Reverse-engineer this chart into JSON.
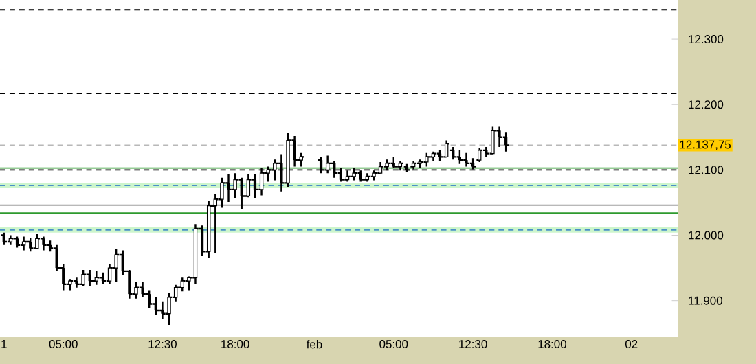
{
  "chart_data": {
    "type": "candlestick",
    "categories": [
      "1",
      null,
      null,
      null,
      null,
      null,
      null,
      null,
      null,
      "05:00",
      null,
      null,
      null,
      null,
      null,
      null,
      null,
      null,
      null,
      null,
      null,
      null,
      null,
      null,
      "12:30",
      null,
      null,
      null,
      null,
      null,
      null,
      null,
      null,
      null,
      null,
      "18:00",
      null,
      null,
      null,
      null,
      null,
      null,
      null,
      null,
      null,
      null,
      null,
      "feb",
      null,
      null,
      null,
      null,
      null,
      null,
      null,
      null,
      null,
      null,
      null,
      "05:00",
      null,
      null,
      null,
      null,
      null,
      null,
      null,
      null,
      null,
      null,
      null,
      "12:30",
      null,
      null,
      null,
      null,
      null,
      null,
      null,
      null,
      null,
      null,
      null,
      "18:00",
      null,
      null,
      null,
      null,
      null,
      null,
      null,
      null,
      null,
      null,
      null,
      "02",
      null,
      null,
      null,
      null,
      null,
      null,
      null
    ],
    "ohlc": [
      [
        12000,
        12004,
        11985,
        11990
      ],
      [
        11990,
        12000,
        11985,
        11995
      ],
      [
        11995,
        11998,
        11981,
        11985
      ],
      [
        11985,
        11998,
        11977,
        11990
      ],
      [
        11990,
        11996,
        11975,
        11980
      ],
      [
        11980,
        12002,
        11979,
        11995
      ],
      [
        11995,
        11998,
        11977,
        11985
      ],
      [
        11985,
        11992,
        11975,
        11980
      ],
      [
        11980,
        11985,
        11945,
        11950
      ],
      [
        11950,
        11956,
        11916,
        11925
      ],
      [
        11925,
        11933,
        11916,
        11930
      ],
      [
        11930,
        11935,
        11920,
        11925
      ],
      [
        11925,
        11947,
        11922,
        11940
      ],
      [
        11940,
        11947,
        11922,
        11930
      ],
      [
        11930,
        11945,
        11924,
        11935
      ],
      [
        11935,
        11943,
        11926,
        11930
      ],
      [
        11930,
        11956,
        11926,
        11950
      ],
      [
        11950,
        11979,
        11928,
        11970
      ],
      [
        11970,
        11977,
        11939,
        11945
      ],
      [
        11945,
        11947,
        11903,
        11910
      ],
      [
        11910,
        11928,
        11903,
        11920
      ],
      [
        11920,
        11928,
        11905,
        11910
      ],
      [
        11910,
        11916,
        11888,
        11895
      ],
      [
        11895,
        11905,
        11878,
        11885
      ],
      [
        11885,
        11899,
        11872,
        11880
      ],
      [
        11880,
        11912,
        11863,
        11905
      ],
      [
        11905,
        11924,
        11899,
        11920
      ],
      [
        11920,
        11935,
        11914,
        11930
      ],
      [
        11930,
        11937,
        11916,
        11935
      ],
      [
        11935,
        12017,
        11926,
        12010
      ],
      [
        12010,
        12015,
        11968,
        11975
      ],
      [
        11975,
        12053,
        11966,
        12045
      ],
      [
        12045,
        12063,
        11973,
        12055
      ],
      [
        12055,
        12088,
        12042,
        12080
      ],
      [
        12080,
        12093,
        12051,
        12070
      ],
      [
        12070,
        12095,
        12057,
        12085
      ],
      [
        12085,
        12088,
        12040,
        12060
      ],
      [
        12060,
        12093,
        12058,
        12085
      ],
      [
        12085,
        12093,
        12057,
        12070
      ],
      [
        12070,
        12103,
        12061,
        12095
      ],
      [
        12095,
        12105,
        12082,
        12100
      ],
      [
        12100,
        12116,
        12084,
        12110
      ],
      [
        12110,
        12124,
        12067,
        12080
      ],
      [
        12080,
        12156,
        12074,
        12145
      ],
      [
        12145,
        12152,
        12105,
        12115
      ],
      [
        12115,
        12126,
        12105,
        12120
      ],
      null,
      null,
      [
        12115,
        12120,
        12095,
        12100
      ],
      [
        12100,
        12122,
        12095,
        12110
      ],
      [
        12110,
        12114,
        12088,
        12095
      ],
      [
        12095,
        12103,
        12082,
        12085
      ],
      [
        12085,
        12099,
        12082,
        12090
      ],
      [
        12090,
        12103,
        12084,
        12095
      ],
      [
        12095,
        12099,
        12082,
        12085
      ],
      [
        12085,
        12095,
        12082,
        12090
      ],
      [
        12090,
        12099,
        12084,
        12095
      ],
      [
        12095,
        12112,
        12095,
        12105
      ],
      [
        12105,
        12116,
        12099,
        12110
      ],
      [
        12110,
        12120,
        12103,
        12105
      ],
      [
        12105,
        12114,
        12099,
        12110
      ],
      [
        12105,
        12109,
        12097,
        12100
      ],
      [
        12105,
        12114,
        12101,
        12110
      ],
      [
        12110,
        12116,
        12103,
        12112
      ],
      [
        12112,
        12126,
        12105,
        12120
      ],
      [
        12120,
        12128,
        12114,
        12125
      ],
      [
        12125,
        12131,
        12114,
        12120
      ],
      [
        12120,
        12145,
        12120,
        12140
      ],
      [
        12130,
        12135,
        12116,
        12120
      ],
      [
        12120,
        12131,
        12109,
        12115
      ],
      [
        12115,
        12126,
        12105,
        12110
      ],
      [
        12110,
        12118,
        12101,
        12105
      ],
      [
        12115,
        12133,
        12112,
        12130
      ],
      [
        12130,
        12135,
        12120,
        12125
      ],
      [
        12125,
        12166,
        12124,
        12160
      ],
      [
        12160,
        12166,
        12135,
        12150
      ],
      [
        12150,
        12158,
        12128,
        12137.75
      ],
      null,
      null,
      null,
      null,
      null,
      null,
      null,
      null,
      null,
      null,
      null,
      null,
      null,
      null,
      null,
      null,
      null,
      null,
      null,
      null,
      null,
      null,
      null,
      null,
      null,
      null
    ],
    "color": "#000000",
    "ylim": [
      11845,
      12360
    ],
    "yticks": [
      {
        "value": 11900,
        "label": "11.900"
      },
      {
        "value": 12000,
        "label": "12.000"
      },
      {
        "value": 12100,
        "label": "12.100"
      },
      {
        "value": 12200,
        "label": "12.200"
      },
      {
        "value": 12300,
        "label": "12.300"
      }
    ],
    "bands": [
      {
        "axis": "y",
        "from": 12072,
        "to": 12080,
        "color": "#ccf5cc"
      },
      {
        "axis": "y",
        "from": 12004,
        "to": 12012,
        "color": "#ccf5cc"
      }
    ],
    "ref_lines": [
      {
        "axis": "y",
        "value": 12345,
        "color": "#000000",
        "line_style": "dashed"
      },
      {
        "axis": "y",
        "value": 12217,
        "color": "#000000",
        "line_style": "dashed"
      },
      {
        "axis": "y",
        "value": 12100,
        "color": "#000000",
        "line_style": "dashed"
      },
      {
        "axis": "y",
        "value": 12103,
        "color": "#2e9a2e",
        "line_style": "solid"
      },
      {
        "axis": "y",
        "value": 12046,
        "color": "#a0a0a0",
        "line_style": "solid"
      },
      {
        "axis": "y",
        "value": 12034,
        "color": "#2e9a2e",
        "line_style": "solid"
      },
      {
        "axis": "y",
        "value": 12076,
        "color": "#4a90c8",
        "line_style": "dashed"
      },
      {
        "axis": "y",
        "value": 12008,
        "color": "#4a90c8",
        "line_style": "dashed"
      },
      {
        "axis": "y",
        "value": 12137.75,
        "label": "12.137,75",
        "color": "#b8b8b8",
        "line_style": "dashed"
      }
    ],
    "grid": false
  }
}
